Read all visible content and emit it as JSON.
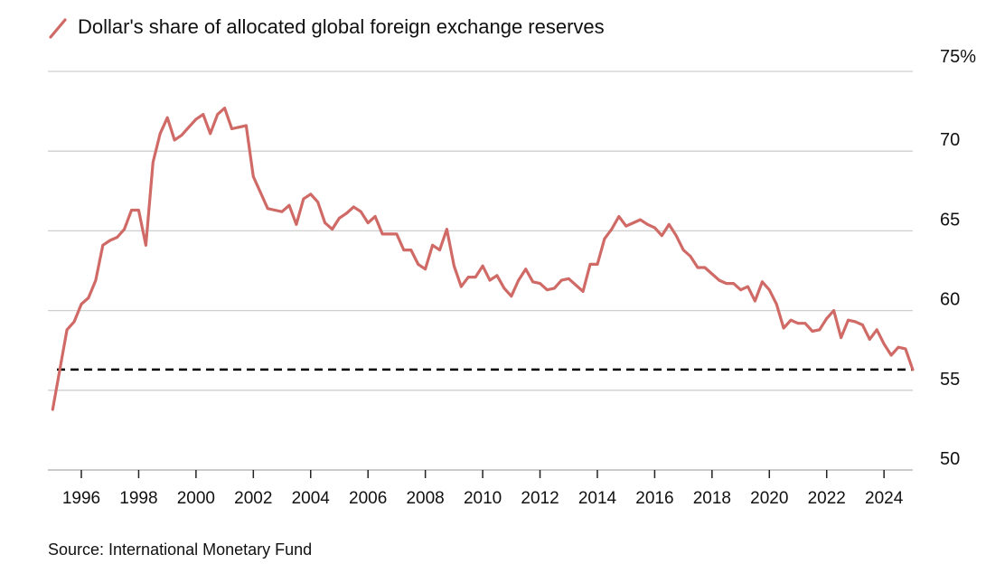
{
  "chart_data": {
    "type": "line",
    "title": "Dollar's share of allocated global foreign exchange reserves",
    "legend_label": "Dollar's share of allocated global foreign exchange reserves",
    "source": "Source: International Monetary Fund",
    "series_color": "#d06a66",
    "xlabel": "",
    "ylabel": "",
    "ylim": [
      50,
      75
    ],
    "xlim": [
      1995.0,
      2025.25
    ],
    "y_ticks": [
      {
        "value": 75,
        "label": "75%"
      },
      {
        "value": 70,
        "label": "70"
      },
      {
        "value": 65,
        "label": "65"
      },
      {
        "value": 60,
        "label": "60"
      },
      {
        "value": 55,
        "label": "55"
      },
      {
        "value": 50,
        "label": "50"
      }
    ],
    "x_ticks": [
      {
        "value": 1996,
        "label": "1996"
      },
      {
        "value": 1998,
        "label": "1998"
      },
      {
        "value": 2000,
        "label": "2000"
      },
      {
        "value": 2002,
        "label": "2002"
      },
      {
        "value": 2004,
        "label": "2004"
      },
      {
        "value": 2006,
        "label": "2006"
      },
      {
        "value": 2008,
        "label": "2008"
      },
      {
        "value": 2010,
        "label": "2010"
      },
      {
        "value": 2012,
        "label": "2012"
      },
      {
        "value": 2014,
        "label": "2014"
      },
      {
        "value": 2016,
        "label": "2016"
      },
      {
        "value": 2018,
        "label": "2018"
      },
      {
        "value": 2020,
        "label": "2020"
      },
      {
        "value": 2022,
        "label": "2022"
      },
      {
        "value": 2024,
        "label": "2024"
      }
    ],
    "reference_line": {
      "value": 56.3,
      "style": "dashed"
    },
    "series": [
      {
        "name": "Dollar's share of allocated global foreign exchange reserves",
        "points": [
          [
            1995.0,
            53.8
          ],
          [
            1995.25,
            56.3
          ],
          [
            1995.5,
            58.8
          ],
          [
            1995.75,
            59.3
          ],
          [
            1996.0,
            60.4
          ],
          [
            1996.25,
            60.8
          ],
          [
            1996.5,
            61.9
          ],
          [
            1996.75,
            64.1
          ],
          [
            1997.0,
            64.4
          ],
          [
            1997.25,
            64.6
          ],
          [
            1997.5,
            65.1
          ],
          [
            1997.75,
            66.3
          ],
          [
            1998.0,
            66.3
          ],
          [
            1998.25,
            64.1
          ],
          [
            1998.5,
            69.3
          ],
          [
            1998.75,
            71.1
          ],
          [
            1999.0,
            72.1
          ],
          [
            1999.25,
            70.7
          ],
          [
            1999.5,
            71.0
          ],
          [
            1999.75,
            71.5
          ],
          [
            2000.0,
            72.0
          ],
          [
            2000.25,
            72.3
          ],
          [
            2000.5,
            71.1
          ],
          [
            2000.75,
            72.3
          ],
          [
            2001.0,
            72.7
          ],
          [
            2001.25,
            71.4
          ],
          [
            2001.5,
            71.5
          ],
          [
            2001.75,
            71.6
          ],
          [
            2002.0,
            68.4
          ],
          [
            2002.25,
            67.4
          ],
          [
            2002.5,
            66.4
          ],
          [
            2002.75,
            66.3
          ],
          [
            2003.0,
            66.2
          ],
          [
            2003.25,
            66.6
          ],
          [
            2003.5,
            65.4
          ],
          [
            2003.75,
            67.0
          ],
          [
            2004.0,
            67.3
          ],
          [
            2004.25,
            66.8
          ],
          [
            2004.5,
            65.5
          ],
          [
            2004.75,
            65.1
          ],
          [
            2005.0,
            65.8
          ],
          [
            2005.25,
            66.1
          ],
          [
            2005.5,
            66.5
          ],
          [
            2005.75,
            66.2
          ],
          [
            2006.0,
            65.5
          ],
          [
            2006.25,
            65.9
          ],
          [
            2006.5,
            64.8
          ],
          [
            2006.75,
            64.8
          ],
          [
            2007.0,
            64.8
          ],
          [
            2007.25,
            63.8
          ],
          [
            2007.5,
            63.8
          ],
          [
            2007.75,
            62.9
          ],
          [
            2008.0,
            62.6
          ],
          [
            2008.25,
            64.1
          ],
          [
            2008.5,
            63.8
          ],
          [
            2008.75,
            65.1
          ],
          [
            2009.0,
            62.8
          ],
          [
            2009.25,
            61.5
          ],
          [
            2009.5,
            62.1
          ],
          [
            2009.75,
            62.1
          ],
          [
            2010.0,
            62.8
          ],
          [
            2010.25,
            61.9
          ],
          [
            2010.5,
            62.2
          ],
          [
            2010.75,
            61.4
          ],
          [
            2011.0,
            60.9
          ],
          [
            2011.25,
            61.9
          ],
          [
            2011.5,
            62.6
          ],
          [
            2011.75,
            61.8
          ],
          [
            2012.0,
            61.7
          ],
          [
            2012.25,
            61.3
          ],
          [
            2012.5,
            61.4
          ],
          [
            2012.75,
            61.9
          ],
          [
            2013.0,
            62.0
          ],
          [
            2013.25,
            61.6
          ],
          [
            2013.5,
            61.2
          ],
          [
            2013.75,
            62.9
          ],
          [
            2014.0,
            62.9
          ],
          [
            2014.25,
            64.5
          ],
          [
            2014.5,
            65.1
          ],
          [
            2014.75,
            65.9
          ],
          [
            2015.0,
            65.3
          ],
          [
            2015.25,
            65.5
          ],
          [
            2015.5,
            65.7
          ],
          [
            2015.75,
            65.4
          ],
          [
            2016.0,
            65.2
          ],
          [
            2016.25,
            64.7
          ],
          [
            2016.5,
            65.4
          ],
          [
            2016.75,
            64.7
          ],
          [
            2017.0,
            63.8
          ],
          [
            2017.25,
            63.4
          ],
          [
            2017.5,
            62.7
          ],
          [
            2017.75,
            62.7
          ],
          [
            2018.0,
            62.3
          ],
          [
            2018.25,
            61.9
          ],
          [
            2018.5,
            61.7
          ],
          [
            2018.75,
            61.7
          ],
          [
            2019.0,
            61.3
          ],
          [
            2019.25,
            61.5
          ],
          [
            2019.5,
            60.6
          ],
          [
            2019.75,
            61.8
          ],
          [
            2020.0,
            61.3
          ],
          [
            2020.25,
            60.4
          ],
          [
            2020.5,
            58.9
          ],
          [
            2020.75,
            59.4
          ],
          [
            2021.0,
            59.2
          ],
          [
            2021.25,
            59.2
          ],
          [
            2021.5,
            58.7
          ],
          [
            2021.75,
            58.8
          ],
          [
            2022.0,
            59.5
          ],
          [
            2022.25,
            60.0
          ],
          [
            2022.5,
            58.3
          ],
          [
            2022.75,
            59.4
          ],
          [
            2023.0,
            59.3
          ],
          [
            2023.25,
            59.1
          ],
          [
            2023.5,
            58.2
          ],
          [
            2023.75,
            58.8
          ],
          [
            2024.0,
            57.9
          ],
          [
            2024.25,
            57.2
          ],
          [
            2024.5,
            57.7
          ],
          [
            2024.75,
            57.6
          ],
          [
            2025.0,
            56.3
          ]
        ]
      }
    ]
  }
}
